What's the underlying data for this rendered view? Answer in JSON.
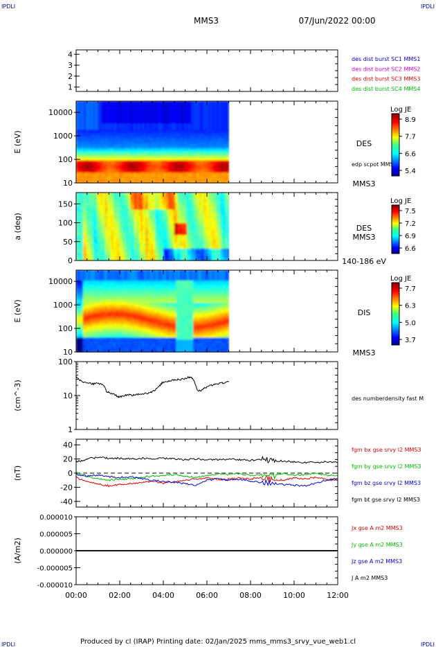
{
  "header": {
    "corner_tl": "IPDLI",
    "corner_tr": "IPDLI",
    "corner_bl": "IPDLI",
    "corner_br": "IPDLI",
    "mission": "MMS3",
    "datetime": "07/Jun/2022 00:00"
  },
  "footer": {
    "credit": "Produced by cl (IRAP)   Printing date: 02/Jan/2025   mms_mms3_srvy_vue_web1.cl"
  },
  "colors": {
    "mms1": "#0000cc",
    "mms2": "#cc00cc",
    "mms3": "#dd0000",
    "mms4": "#00bb00",
    "x": "#dd0000",
    "y": "#00bb00",
    "z": "#0000cc",
    "t": "#000000"
  },
  "chart_data": [
    {
      "type": "scatter",
      "panel": "burst-flags",
      "yticks": [
        "4",
        "3",
        "2",
        "1"
      ],
      "ylim": [
        0.6,
        4.4
      ],
      "legend": [
        {
          "label": "des dist burst SC1 MMS1",
          "color_key": "mms1"
        },
        {
          "label": "des dist burst SC2 MMS2",
          "color_key": "mms2"
        },
        {
          "label": "des dist burst SC3 MMS3",
          "color_key": "mms3"
        },
        {
          "label": "des dist burst SC4 MMS4",
          "color_key": "mms4"
        }
      ]
    },
    {
      "type": "heatmap",
      "panel": "des-energy",
      "ylabel": "E (eV)",
      "yticks": [
        "10",
        "100",
        "1000",
        "10000"
      ],
      "ylim": [
        10,
        30000
      ],
      "yscale": "log",
      "data_end_hour": 7.0,
      "right_label": "DES",
      "right_sub": "edp scpot MMS3",
      "right_bottom": "MMS3",
      "colorbar": {
        "title": "Log JE",
        "ticks": [
          "8.9",
          "7.7",
          "6.6",
          "5.4"
        ],
        "range": [
          5.4,
          8.9
        ]
      }
    },
    {
      "type": "heatmap",
      "panel": "des-pitch",
      "ylabel": "a (deg)",
      "yticks": [
        "0",
        "50",
        "100",
        "150"
      ],
      "ylim": [
        0,
        180
      ],
      "data_end_hour": 7.0,
      "right_label": "DES",
      "right_sub": "MMS3",
      "right_bottom": "140-186 eV",
      "colorbar": {
        "title": "Log JE",
        "ticks": [
          "7.5",
          "7.2",
          "6.9",
          "6.6"
        ],
        "range": [
          6.6,
          7.5
        ]
      }
    },
    {
      "type": "heatmap",
      "panel": "dis-energy",
      "ylabel": "E (eV)",
      "yticks": [
        "10",
        "100",
        "1000",
        "10000"
      ],
      "ylim": [
        10,
        30000
      ],
      "yscale": "log",
      "data_end_hour": 7.0,
      "right_label": "DIS",
      "right_bottom": "MMS3",
      "colorbar": {
        "title": "Log JE",
        "ticks": [
          "7.7",
          "6.3",
          "5.0",
          "3.7"
        ],
        "range": [
          3.7,
          7.7
        ]
      }
    },
    {
      "type": "line",
      "panel": "density",
      "ylabel": "(cm^-3)",
      "yticks": [
        "1",
        "10",
        "100"
      ],
      "ylim": [
        1,
        100
      ],
      "yscale": "log",
      "series": [
        {
          "name": "des numberdensity fast M",
          "color_key": "t",
          "x": [
            0.0,
            0.2,
            0.4,
            0.6,
            0.8,
            1.0,
            1.2,
            1.3,
            1.4,
            1.5,
            1.7,
            1.9,
            2.0,
            2.2,
            2.4,
            2.6,
            2.8,
            3.0,
            3.2,
            3.4,
            3.6,
            3.8,
            3.9,
            4.0,
            4.2,
            4.4,
            4.6,
            4.8,
            5.0,
            5.2,
            5.3,
            5.4,
            5.5,
            5.6,
            5.8,
            6.0,
            6.2,
            6.4,
            6.6,
            6.8,
            7.0
          ],
          "y": [
            35,
            28,
            24,
            23,
            22,
            23,
            22,
            18,
            13,
            12,
            11,
            9.5,
            9.0,
            9.8,
            10.5,
            10.2,
            10.8,
            11,
            11.5,
            12.5,
            14,
            18,
            22,
            25,
            26,
            28,
            29,
            30,
            32,
            35,
            33,
            28,
            18,
            13,
            15,
            18,
            20,
            22,
            23,
            24,
            25
          ]
        }
      ]
    },
    {
      "type": "line",
      "panel": "magnetic-field",
      "ylabel": "(nT)",
      "yticks": [
        "-40",
        "-20",
        "0",
        "20",
        "40"
      ],
      "ylim": [
        -48,
        48
      ],
      "series": [
        {
          "name": "fgm bx gse srvy l2 MMS3",
          "color_key": "x",
          "x": [
            0,
            0.5,
            1,
            1.5,
            2,
            2.5,
            3,
            3.5,
            4,
            4.5,
            5,
            5.5,
            6,
            6.5,
            7,
            7.5,
            8,
            8.5,
            9,
            9.5,
            10,
            10.5,
            11,
            11.5,
            12
          ],
          "y": [
            -6,
            -12,
            -15,
            -18,
            -16,
            -15,
            -13,
            -12,
            -14,
            -12,
            -10,
            -8,
            -7,
            -9,
            -8,
            -7,
            -8,
            -6,
            -9,
            -10,
            -7,
            -8,
            -6,
            -9,
            -10
          ]
        },
        {
          "name": "fgm by gse srvy l2 MMS3",
          "color_key": "y",
          "x": [
            0,
            0.5,
            1,
            1.5,
            2,
            2.5,
            3,
            3.5,
            4,
            4.5,
            5,
            5.5,
            6,
            6.5,
            7,
            7.5,
            8,
            8.5,
            9,
            9.5,
            10,
            10.5,
            11,
            11.5,
            12
          ],
          "y": [
            2,
            -5,
            -8,
            -10,
            -9,
            -8,
            -6,
            -4,
            -3,
            -2,
            -4,
            -6,
            -3,
            -1,
            -2,
            -1,
            -3,
            -2,
            -4,
            -1,
            -3,
            -2,
            0,
            -3,
            -4
          ]
        },
        {
          "name": "fgm bz gse srvy l2 MMS3",
          "color_key": "z",
          "x": [
            0,
            0.5,
            1,
            1.5,
            2,
            2.5,
            3,
            3.5,
            4,
            4.5,
            5,
            5.5,
            6,
            6.5,
            7,
            7.5,
            8,
            8.5,
            9,
            9.5,
            10,
            10.5,
            11,
            11.5,
            12
          ],
          "y": [
            -2,
            -4,
            -3,
            -5,
            -6,
            -5,
            -8,
            -10,
            -12,
            -13,
            -15,
            -17,
            -10,
            -8,
            -10,
            -9,
            -11,
            -13,
            -15,
            -16,
            -17,
            -18,
            -14,
            -10,
            -8
          ]
        },
        {
          "name": "fgm bt gse srvy l2 MMS3",
          "color_key": "t",
          "x": [
            0,
            0.3,
            0.6,
            1,
            1.5,
            2,
            2.5,
            3,
            3.5,
            4,
            4.5,
            5,
            5.5,
            6,
            6.5,
            7,
            7.5,
            8,
            8.5,
            9,
            9.5,
            10,
            10.5,
            11,
            11.5,
            12
          ],
          "y": [
            16,
            18,
            21,
            22,
            21,
            21,
            20,
            21,
            20,
            21,
            20,
            19,
            20,
            19,
            19,
            20,
            19,
            18,
            19,
            18,
            17,
            16,
            15,
            15,
            16,
            15
          ]
        }
      ]
    },
    {
      "type": "line",
      "panel": "current-density",
      "ylabel": "(A/m2)",
      "yticks": [
        "-0.000010",
        "-0.000005",
        "0.000000",
        "0.000005",
        "0.000010"
      ],
      "ylim": [
        -1e-05,
        1e-05
      ],
      "xlim": [
        0,
        12
      ],
      "xticks": [
        "00:00",
        "02:00",
        "04:00",
        "06:00",
        "08:00",
        "10:00",
        "12:00"
      ],
      "series": [
        {
          "name": "Jx gse A m2 MMS3",
          "color_key": "x",
          "x": [
            0,
            12
          ],
          "y": [
            0,
            0
          ]
        },
        {
          "name": "Jy gse A m2 MMS3",
          "color_key": "y",
          "x": [
            0,
            12
          ],
          "y": [
            0,
            0
          ]
        },
        {
          "name": "Jz gse A m2 MMS3",
          "color_key": "z",
          "x": [
            0,
            12
          ],
          "y": [
            0,
            0
          ]
        },
        {
          "name": "J A m2 MMS3",
          "color_key": "t",
          "x": [
            0,
            12
          ],
          "y": [
            0,
            0
          ]
        }
      ]
    }
  ]
}
